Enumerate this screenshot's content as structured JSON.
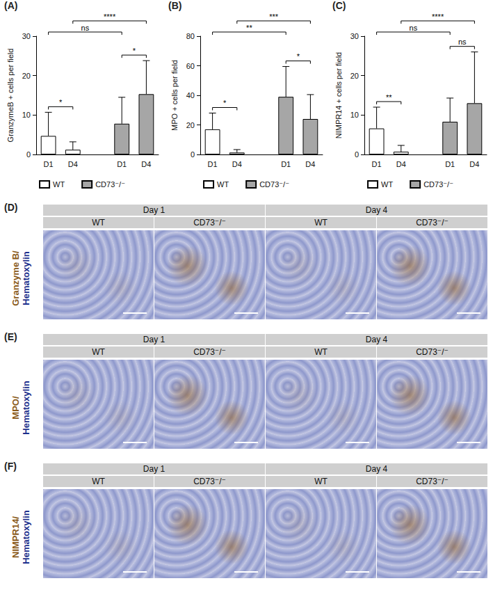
{
  "chart_data": [
    {
      "panel": "(A)",
      "type": "bar",
      "y_label": "GranzymeB + cells per field",
      "categories": [
        "D1",
        "D4",
        null,
        "D1",
        "D4"
      ],
      "ylim": [
        0,
        30
      ],
      "yticks": [
        0,
        10,
        20,
        30
      ],
      "grid": false,
      "legend": "bottom",
      "series": [
        {
          "name": "WT",
          "color": "#ffffff",
          "values": [
            4.7,
            1.2,
            null,
            null,
            null
          ],
          "errors": [
            6.0,
            2.0,
            null,
            null,
            null
          ]
        },
        {
          "name": "CD73⁻/⁻",
          "color": "#a6a6a6",
          "values": [
            null,
            null,
            null,
            7.8,
            15.3
          ],
          "errors": [
            null,
            null,
            null,
            6.7,
            8.5
          ]
        }
      ],
      "comparisons": [
        {
          "from": 0,
          "to": 1,
          "label": "*"
        },
        {
          "from": 3,
          "to": 4,
          "label": "*"
        },
        {
          "from": 0,
          "to": 3,
          "label": "ns"
        },
        {
          "from": 1,
          "to": 4,
          "label": "****"
        }
      ]
    },
    {
      "panel": "(B)",
      "type": "bar",
      "y_label": "MPO + cells per field",
      "categories": [
        "D1",
        "D4",
        null,
        "D1",
        "D4"
      ],
      "ylim": [
        0,
        80
      ],
      "yticks": [
        0,
        20,
        40,
        60,
        80
      ],
      "grid": false,
      "legend": "bottom",
      "series": [
        {
          "name": "WT",
          "color": "#ffffff",
          "values": [
            17,
            1.3,
            null,
            null,
            null
          ],
          "errors": [
            11,
            2,
            null,
            null,
            null
          ]
        },
        {
          "name": "CD73⁻/⁻",
          "color": "#a6a6a6",
          "values": [
            null,
            null,
            null,
            39,
            24
          ],
          "errors": [
            null,
            null,
            null,
            20.5,
            16.5
          ]
        }
      ],
      "comparisons": [
        {
          "from": 0,
          "to": 1,
          "label": "*"
        },
        {
          "from": 3,
          "to": 4,
          "label": "*"
        },
        {
          "from": 0,
          "to": 3,
          "label": "**"
        },
        {
          "from": 1,
          "to": 4,
          "label": "***"
        }
      ]
    },
    {
      "panel": "(C)",
      "type": "bar",
      "y_label": "NIMPR14 + cells per field",
      "categories": [
        "D1",
        "D4",
        null,
        "D1",
        "D4"
      ],
      "ylim": [
        0,
        30
      ],
      "yticks": [
        0,
        10,
        20,
        30
      ],
      "grid": false,
      "legend": "bottom",
      "series": [
        {
          "name": "WT",
          "color": "#ffffff",
          "values": [
            6.6,
            0.7,
            null,
            null,
            null
          ],
          "errors": [
            5.4,
            1.6,
            null,
            null,
            null
          ]
        },
        {
          "name": "CD73⁻/⁻",
          "color": "#a6a6a6",
          "values": [
            null,
            null,
            null,
            8.3,
            13
          ],
          "errors": [
            null,
            null,
            null,
            6,
            13
          ]
        }
      ],
      "comparisons": [
        {
          "from": 0,
          "to": 1,
          "label": "**"
        },
        {
          "from": 3,
          "to": 4,
          "label": "ns"
        },
        {
          "from": 0,
          "to": 3,
          "label": "ns"
        },
        {
          "from": 1,
          "to": 4,
          "label": "****"
        }
      ]
    }
  ],
  "image_panels": [
    {
      "label": "(D)",
      "stain": "Granzyme B/",
      "counterstain": "Hematoxylin",
      "days": [
        "Day 1",
        "Day 4"
      ],
      "groups": [
        "WT",
        "CD73⁻/⁻"
      ]
    },
    {
      "label": "(E)",
      "stain": "MPO/",
      "counterstain": "Hematoxylin",
      "days": [
        "Day 1",
        "Day 4"
      ],
      "groups": [
        "WT",
        "CD73⁻/⁻"
      ]
    },
    {
      "label": "(F)",
      "stain": "NIMPR14/",
      "counterstain": "Hematoxylin",
      "days": [
        "Day 1",
        "Day 4"
      ],
      "groups": [
        "WT",
        "CD73⁻/⁻"
      ]
    }
  ],
  "stain_color": "#8a5a1a",
  "counterstain_color": "#1c2f8c"
}
